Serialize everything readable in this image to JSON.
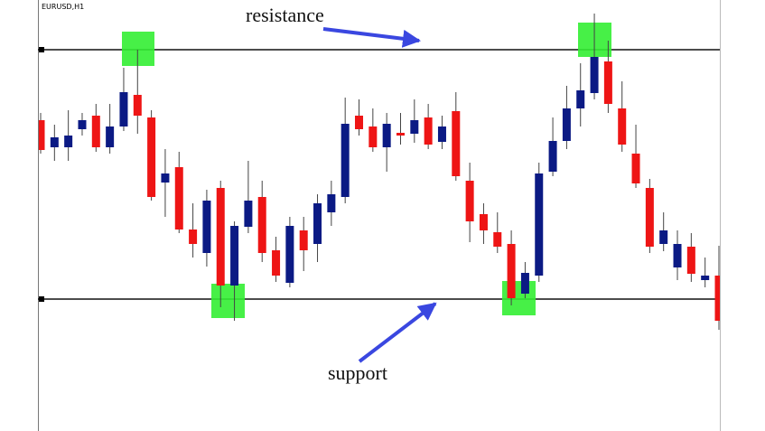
{
  "chart_data": {
    "type": "candlestick",
    "title": "EURUSD,H1",
    "ylim": [
      0,
      477
    ],
    "up_color": "#0b1a84",
    "down_color": "#ee1515",
    "open": [
      344,
      314,
      314,
      334,
      349,
      314,
      337,
      372,
      347,
      275,
      292,
      223,
      197,
      269,
      161,
      226,
      259,
      200,
      164,
      222,
      207,
      242,
      259,
      349,
      337,
      314,
      330,
      329,
      347,
      320,
      354,
      277,
      240,
      220,
      207,
      152,
      172,
      287,
      321,
      357,
      374,
      409,
      357,
      307,
      269,
      207,
      181,
      204,
      167,
      172
    ],
    "high": [
      352,
      339,
      355,
      352,
      362,
      362,
      402,
      422,
      355,
      312,
      309,
      252,
      267,
      277,
      232,
      299,
      277,
      215,
      237,
      237,
      262,
      277,
      369,
      367,
      357,
      352,
      352,
      367,
      362,
      349,
      375,
      297,
      252,
      242,
      222,
      187,
      297,
      347,
      382,
      407,
      462,
      432,
      387,
      339,
      279,
      242,
      222,
      219,
      192,
      205
    ],
    "low": [
      307,
      299,
      299,
      327,
      309,
      307,
      332,
      329,
      255,
      237,
      219,
      192,
      182,
      137,
      122,
      219,
      187,
      165,
      159,
      177,
      187,
      227,
      252,
      327,
      309,
      287,
      317,
      319,
      312,
      312,
      277,
      209,
      207,
      197,
      139,
      147,
      165,
      282,
      312,
      337,
      367,
      352,
      309,
      269,
      197,
      199,
      167,
      165,
      159,
      112
    ],
    "close": [
      311,
      325,
      327,
      344,
      314,
      337,
      375,
      349,
      259,
      285,
      223,
      207,
      255,
      161,
      227,
      255,
      197,
      172,
      227,
      200,
      252,
      262,
      340,
      334,
      314,
      340,
      327,
      344,
      317,
      337,
      282,
      232,
      222,
      204,
      147,
      175,
      285,
      321,
      357,
      377,
      414,
      362,
      317,
      274,
      204,
      222,
      207,
      174,
      172,
      122
    ],
    "annotations": [
      {
        "text": "resistance",
        "value": 422
      },
      {
        "text": "support",
        "value": 146
      }
    ]
  }
}
